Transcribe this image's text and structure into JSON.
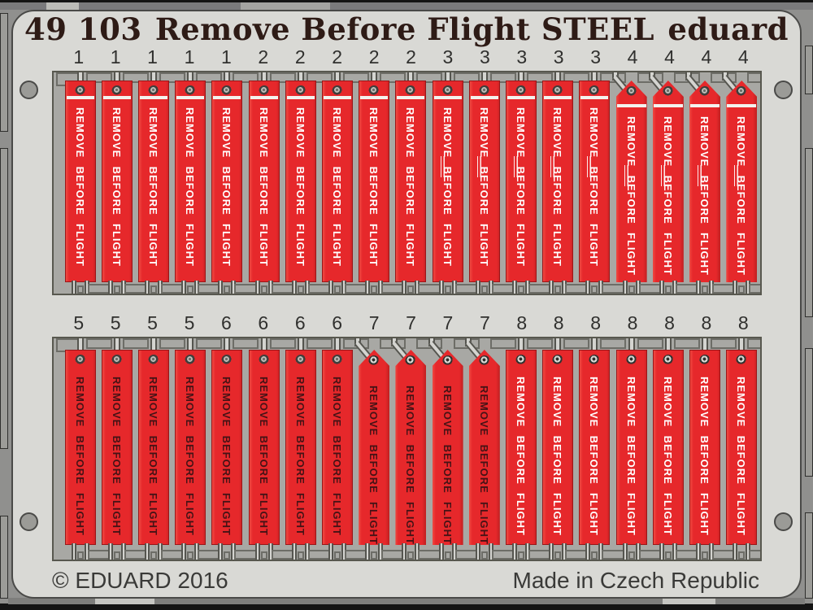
{
  "header": {
    "catalog_no": "49 103",
    "title": "Remove Before Flight STEEL",
    "brand": "eduard"
  },
  "footer": {
    "copyright": "© EDUARD 2016",
    "made_in": "Made in Czech Republic"
  },
  "tag_text": {
    "words": [
      "REMOVE",
      "BEFORE",
      "FLIGHT"
    ]
  },
  "rows": [
    {
      "name": "top-row",
      "groups": [
        {
          "number": "1",
          "count": 5,
          "peaked": false,
          "white_bar": true,
          "text_style": "light",
          "small_print": false,
          "grommet": "A"
        },
        {
          "number": "2",
          "count": 5,
          "peaked": false,
          "white_bar": true,
          "text_style": "light",
          "small_print": false,
          "grommet": "A"
        },
        {
          "number": "3",
          "count": 5,
          "peaked": false,
          "white_bar": true,
          "text_style": "light",
          "small_print": true,
          "grommet": "A"
        },
        {
          "number": "4",
          "count": 4,
          "peaked": true,
          "white_bar": true,
          "text_style": "light",
          "small_print": true,
          "grommet": "A"
        }
      ]
    },
    {
      "name": "bottom-row",
      "groups": [
        {
          "number": "5",
          "count": 4,
          "peaked": false,
          "white_bar": false,
          "text_style": "dark",
          "small_print": false,
          "grommet": "A"
        },
        {
          "number": "6",
          "count": 4,
          "peaked": false,
          "white_bar": false,
          "text_style": "dark",
          "small_print": false,
          "grommet": "A"
        },
        {
          "number": "7",
          "count": 4,
          "peaked": true,
          "white_bar": false,
          "text_style": "dark",
          "small_print": false,
          "grommet": "B"
        },
        {
          "number": "8",
          "count": 7,
          "peaked": false,
          "white_bar": false,
          "text_style": "light",
          "small_print": false,
          "grommet": "B"
        }
      ]
    }
  ],
  "colors": {
    "tag_red": "#e6282b",
    "tag_red_shadow": "#bf2021",
    "frame_gray": "#d9d9d5",
    "panel_gray": "#a8a8a4",
    "header_text": "#2e1b16",
    "footer_text": "#3a3a38",
    "tag_text_light": "#ffffff",
    "tag_text_dark": "#451316"
  }
}
